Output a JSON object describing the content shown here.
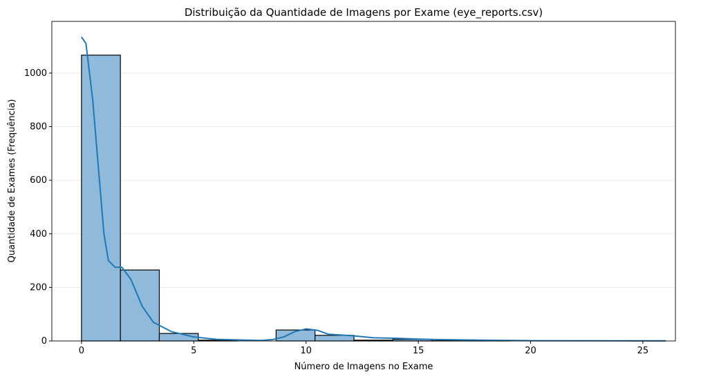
{
  "chart_data": {
    "type": "bar",
    "title": "Distribuição da Quantidade de Imagens por Exame (eye_reports.csv)",
    "xlabel": "Número de Imagens no Exame",
    "ylabel": "Quantidade de Exames (Frequência)",
    "xlim": [
      -1.32,
      26.45
    ],
    "ylim": [
      0,
      1193
    ],
    "xticks": [
      0,
      5,
      10,
      15,
      20,
      25
    ],
    "yticks": [
      0,
      200,
      400,
      600,
      800,
      1000
    ],
    "grid": "y",
    "bin_edges_range": [
      0,
      26
    ],
    "bins": 15,
    "values": [
      1067,
      265,
      28,
      3,
      0,
      41,
      21,
      3,
      6,
      1,
      1,
      0,
      0,
      0,
      1
    ],
    "kde": {
      "x": [
        0,
        0.2,
        0.5,
        0.8,
        1,
        1.2,
        1.5,
        1.8,
        2.2,
        2.7,
        3.2,
        4,
        5,
        6,
        7,
        8,
        8.5,
        9,
        9.5,
        10,
        10.5,
        11,
        12,
        13,
        14,
        15,
        16,
        18,
        20,
        26
      ],
      "y": [
        1135,
        1110,
        900,
        600,
        400,
        300,
        275,
        275,
        230,
        130,
        70,
        35,
        15,
        6,
        4,
        2,
        5,
        15,
        35,
        45,
        40,
        25,
        20,
        12,
        10,
        7,
        5,
        3,
        1,
        0.5
      ]
    },
    "colors": {
      "bar": "#8fbadb",
      "edge": "#000000",
      "kde": "#1f77b4"
    }
  }
}
